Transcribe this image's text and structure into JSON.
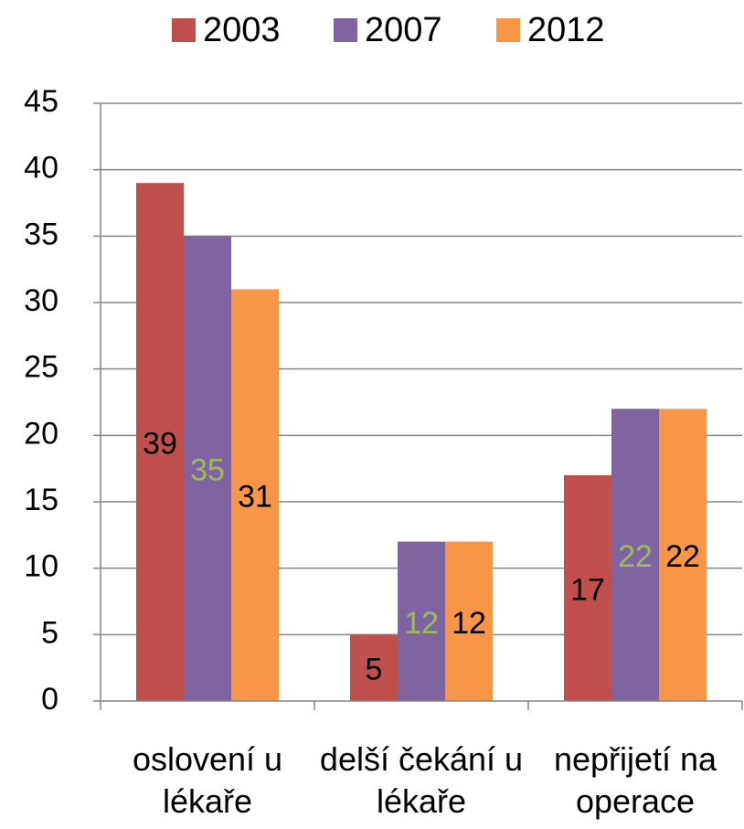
{
  "chart_data": {
    "type": "bar",
    "categories": [
      "oslovení u lékaře",
      "delší čekání u lékaře",
      "nepřijetí na operace"
    ],
    "series": [
      {
        "name": "2003",
        "color": "#c0504d",
        "label_color": "#000000",
        "values": [
          39,
          5,
          17
        ]
      },
      {
        "name": "2007",
        "color": "#8064a2",
        "label_color": "#9bbb59",
        "values": [
          35,
          12,
          22
        ]
      },
      {
        "name": "2012",
        "color": "#f79646",
        "label_color": "#000000",
        "values": [
          31,
          12,
          22
        ]
      }
    ],
    "ylim": [
      0,
      45
    ],
    "yticks": [
      0,
      5,
      10,
      15,
      20,
      25,
      30,
      35,
      40,
      45
    ],
    "grid": true,
    "legend": "top"
  }
}
